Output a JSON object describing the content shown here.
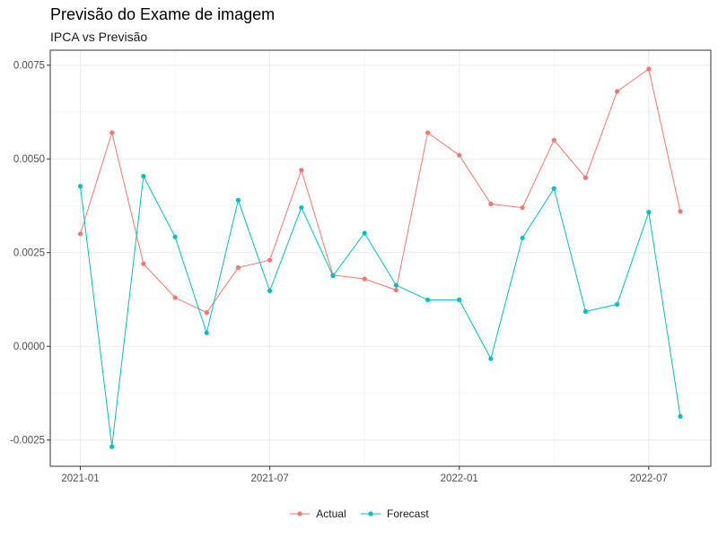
{
  "chart_data": {
    "type": "line",
    "title": "Previsão do Exame de imagem",
    "subtitle": "IPCA vs Previsão",
    "xlabel": "",
    "ylabel": "",
    "x": [
      "2021-01",
      "2021-02",
      "2021-03",
      "2021-04",
      "2021-05",
      "2021-06",
      "2021-07",
      "2021-08",
      "2021-09",
      "2021-10",
      "2021-11",
      "2021-12",
      "2022-01",
      "2022-02",
      "2022-03",
      "2022-04",
      "2022-05",
      "2022-06",
      "2022-07",
      "2022-08"
    ],
    "x_ticks": [
      "2021-01",
      "2021-07",
      "2022-01",
      "2022-07"
    ],
    "y_ticks": [
      "-0.0025",
      "0.0000",
      "0.0025",
      "0.0050",
      "0.0075"
    ],
    "ylim": [
      -0.0032,
      0.0079
    ],
    "grid": true,
    "legend_position": "bottom",
    "series": [
      {
        "name": "Actual",
        "color": "#F8766D",
        "values": [
          0.003,
          0.0057,
          0.0022,
          0.0013,
          0.0009,
          0.0021,
          0.0023,
          0.0047,
          0.0019,
          0.0018,
          0.0015,
          0.0057,
          0.0051,
          0.0038,
          0.0037,
          0.0055,
          0.0045,
          0.0068,
          0.0074,
          0.0036
        ]
      },
      {
        "name": "Forecast",
        "color": "#00BFC4",
        "values": [
          0.00427,
          -0.00268,
          0.00454,
          0.00292,
          0.00036,
          0.0039,
          0.00148,
          0.0037,
          0.00188,
          0.00302,
          0.00163,
          0.00124,
          0.00124,
          -0.00033,
          0.00289,
          0.00421,
          0.00093,
          0.00112,
          0.00358,
          -0.00187
        ]
      }
    ]
  }
}
